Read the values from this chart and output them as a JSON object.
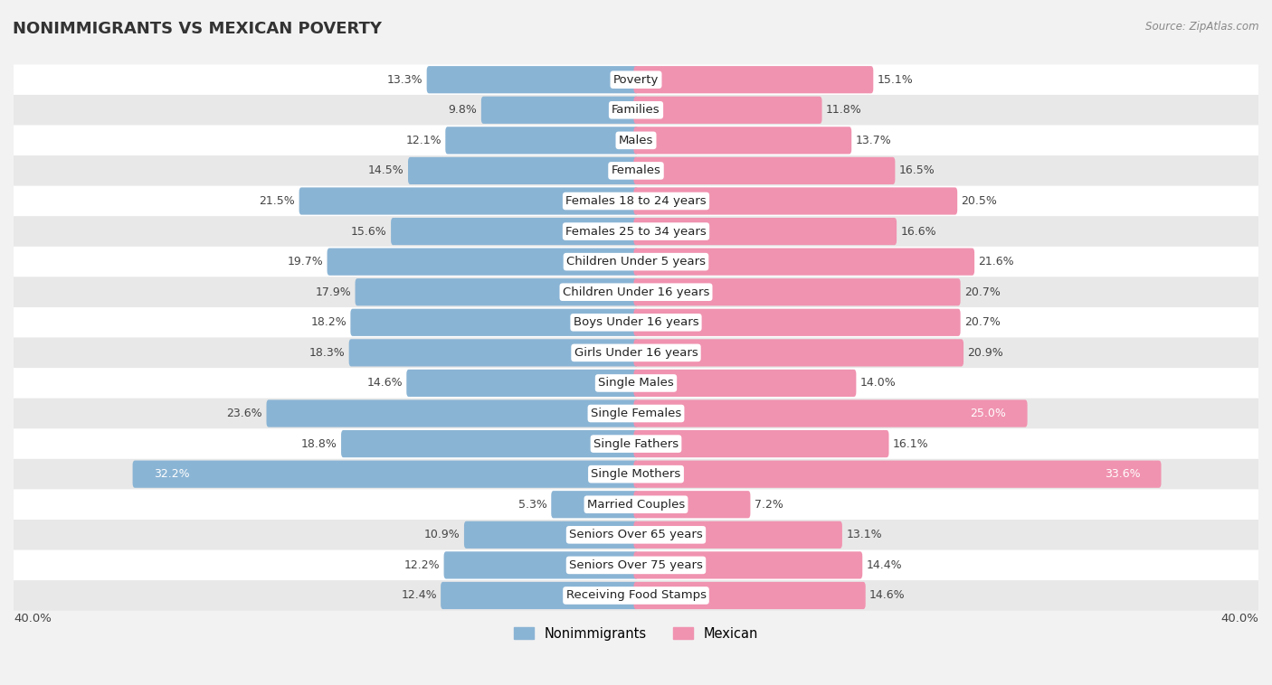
{
  "title": "NONIMMIGRANTS VS MEXICAN POVERTY",
  "source": "Source: ZipAtlas.com",
  "categories": [
    "Poverty",
    "Families",
    "Males",
    "Females",
    "Females 18 to 24 years",
    "Females 25 to 34 years",
    "Children Under 5 years",
    "Children Under 16 years",
    "Boys Under 16 years",
    "Girls Under 16 years",
    "Single Males",
    "Single Females",
    "Single Fathers",
    "Single Mothers",
    "Married Couples",
    "Seniors Over 65 years",
    "Seniors Over 75 years",
    "Receiving Food Stamps"
  ],
  "nonimmigrant_values": [
    13.3,
    9.8,
    12.1,
    14.5,
    21.5,
    15.6,
    19.7,
    17.9,
    18.2,
    18.3,
    14.6,
    23.6,
    18.8,
    32.2,
    5.3,
    10.9,
    12.2,
    12.4
  ],
  "mexican_values": [
    15.1,
    11.8,
    13.7,
    16.5,
    20.5,
    16.6,
    21.6,
    20.7,
    20.7,
    20.9,
    14.0,
    25.0,
    16.1,
    33.6,
    7.2,
    13.1,
    14.4,
    14.6
  ],
  "nonimmigrant_color": "#8ab4d4",
  "mexican_color": "#f093b0",
  "background_color": "#f2f2f2",
  "row_bg_even": "#ffffff",
  "row_bg_odd": "#e8e8e8",
  "axis_max": 40.0,
  "label_fontsize": 9.5,
  "title_fontsize": 13,
  "bar_height": 0.6,
  "inside_label_nonimm": [
    32.2
  ],
  "inside_label_mexican": [
    33.6,
    25.0
  ]
}
